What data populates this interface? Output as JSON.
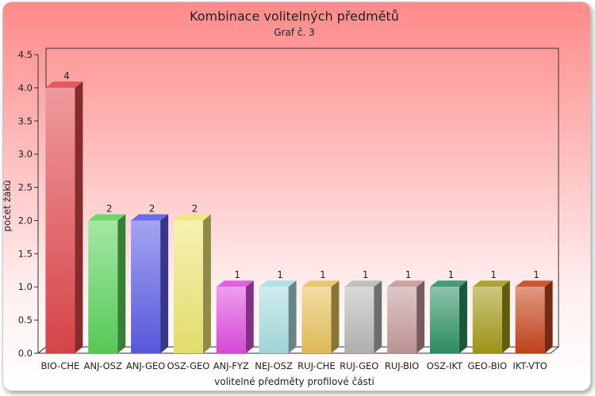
{
  "chart_data": {
    "type": "bar",
    "title": "Kombinace volitelných předmětů",
    "subtitle": "Graf č. 3",
    "xlabel": "volitelné předměty profilové části",
    "ylabel": "počet žáků",
    "ylim": [
      0,
      4.5
    ],
    "yticks": [
      "0.0",
      "0.5",
      "1.0",
      "1.5",
      "2.0",
      "2.5",
      "3.0",
      "3.5",
      "4.0",
      "4.5"
    ],
    "grid": false,
    "categories": [
      "BIO-CHE",
      "ANJ-OSZ",
      "ANJ-GEO",
      "OSZ-GEO",
      "ANJ-FYZ",
      "NEJ-OSZ",
      "RUJ-CHE",
      "RUJ-GEO",
      "RUJ-BIO",
      "OSZ-IKT",
      "GEO-BIO",
      "IKT-VTO"
    ],
    "values": [
      4,
      2,
      2,
      2,
      1,
      1,
      1,
      1,
      1,
      1,
      1,
      1
    ],
    "data_labels": [
      "4",
      "2",
      "2",
      "2",
      "1",
      "1",
      "1",
      "1",
      "1",
      "1",
      "1",
      "1"
    ],
    "colors": [
      "#e0474c",
      "#5bd35b",
      "#5a5ae6",
      "#eee673",
      "#e04de0",
      "#a8dde0",
      "#e8c35a",
      "#b8b8b8",
      "#c49a9a",
      "#2e9165",
      "#a39a17",
      "#c8441c"
    ]
  }
}
